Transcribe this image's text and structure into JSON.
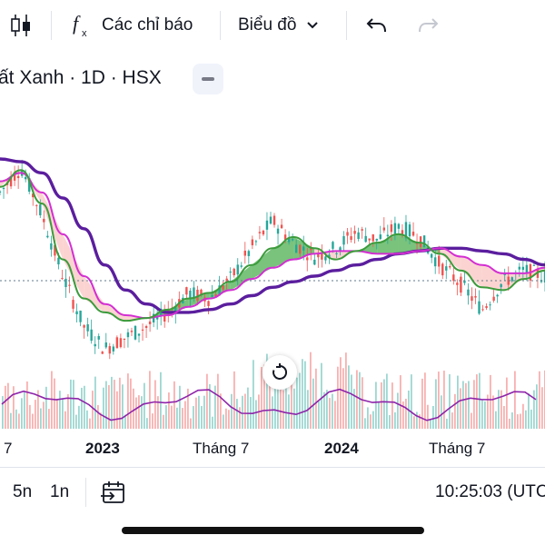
{
  "toolbar": {
    "candles_icon": "candlestick-icon",
    "indicators_icon": "fx-icon",
    "indicators_label": "Các chỉ báo",
    "chart_label": "Biểu đồ",
    "chart_dropdown_icon": "chevron-down-icon",
    "undo_icon": "undo-icon",
    "redo_icon": "redo-icon"
  },
  "symbol": {
    "title": "ất Xanh · 1D · HSX",
    "collapse_icon": "minus-icon"
  },
  "chart_reset_icon": "reset-icon",
  "x_axis": {
    "labels": [
      "7",
      "2023",
      "Tháng 7",
      "2024",
      "Tháng 7"
    ]
  },
  "bottom_bar": {
    "interval_5n": "5n",
    "interval_1n": "1n",
    "goto_date_icon": "calendar-arrow-icon",
    "clock": "10:25:03 (UTC"
  },
  "colors": {
    "up": "#26a69a",
    "down": "#ef5350",
    "ma_slow": "#5b1e9e",
    "ma_mid": "#d32fd2",
    "ma_fast": "#3c9b3c",
    "cloud_up": "#4caf50",
    "cloud_down": "#f8b7b3",
    "volume_osc": "#8e24aa"
  },
  "chart_data": {
    "type": "line",
    "note": "",
    "x_labels": [
      "7",
      "2023",
      "Tháng 7",
      "2024",
      "Tháng 7"
    ],
    "series": [
      {
        "values": [
          100,
          99,
          95,
          86,
          75,
          62,
          53,
          48,
          45,
          45,
          46,
          48,
          51,
          54,
          56,
          58,
          60,
          62,
          64,
          66,
          67,
          68,
          68,
          67,
          66,
          64,
          62
        ]
      },
      {
        "values": [
          92,
          95,
          88,
          73,
          58,
          48,
          44,
          43,
          44,
          47,
          50,
          53,
          57,
          61,
          64,
          66,
          67,
          67,
          66,
          66,
          67,
          68,
          65,
          62,
          59,
          59,
          61
        ]
      },
      {
        "values": [
          90,
          96,
          84,
          64,
          50,
          45,
          42,
          43,
          46,
          50,
          52,
          56,
          62,
          68,
          72,
          68,
          64,
          67,
          70,
          73,
          70,
          66,
          60,
          54,
          53,
          57,
          60
        ]
      },
      {
        "values": [
          88,
          97,
          80,
          58,
          40,
          32,
          36,
          40,
          45,
          52,
          50,
          57,
          68,
          78,
          70,
          65,
          68,
          74,
          71,
          76,
          72,
          62,
          55,
          46,
          56,
          60,
          58
        ]
      }
    ]
  }
}
